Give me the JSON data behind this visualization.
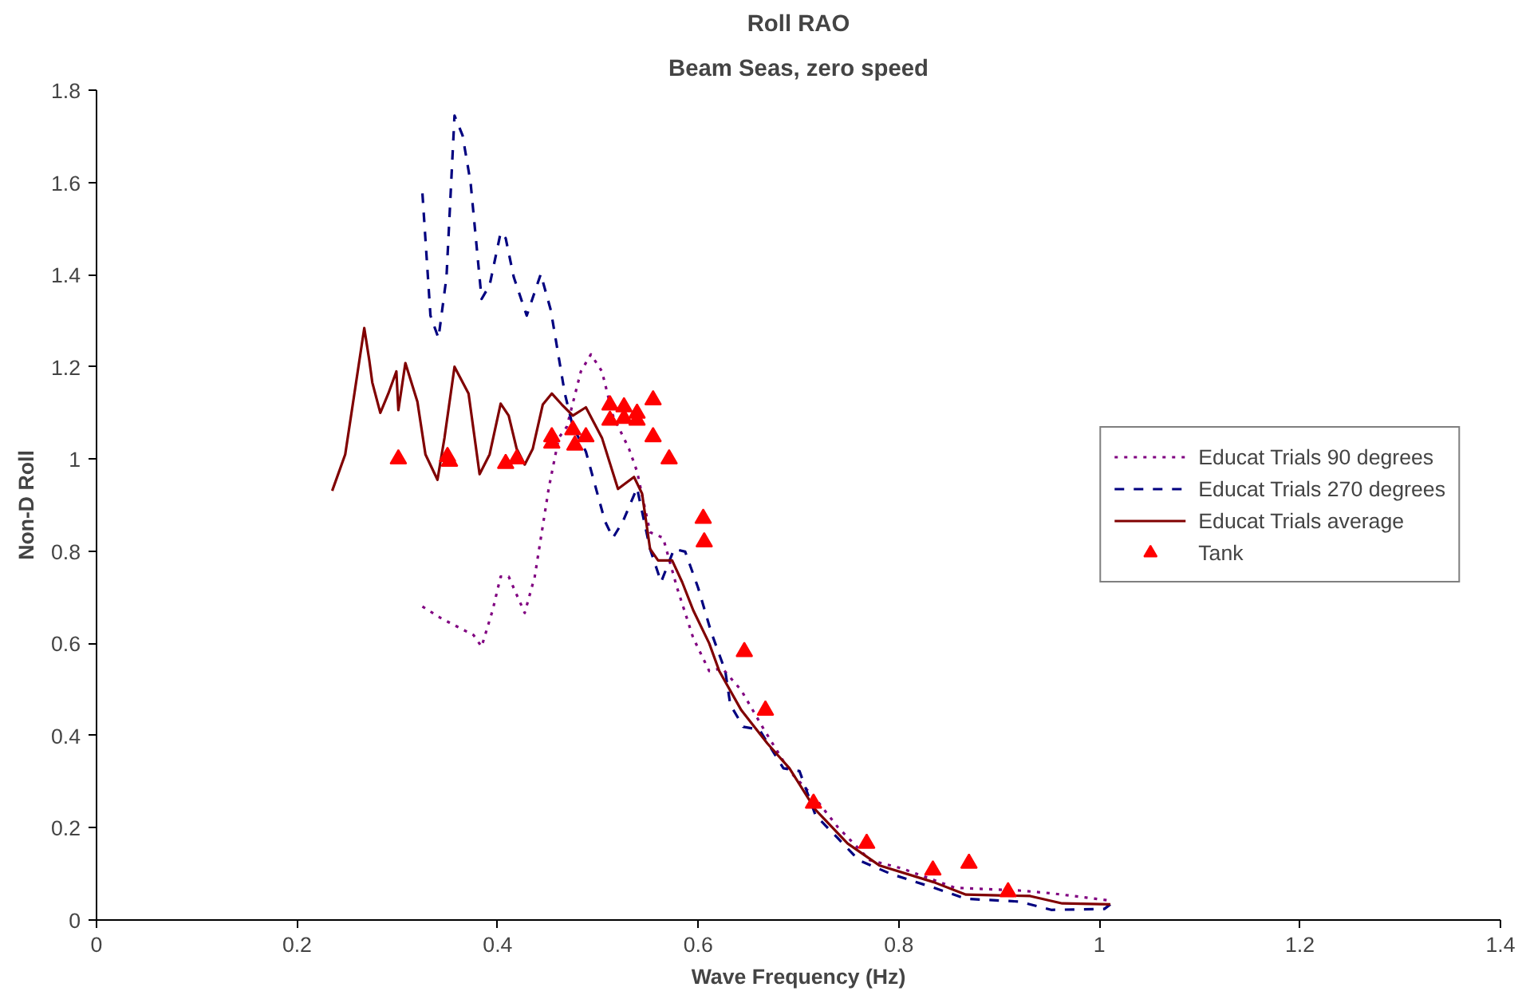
{
  "chart_data": {
    "type": "line",
    "title": "Roll RAO",
    "subtitle": "Beam Seas, zero speed",
    "xlabel": "Wave Frequency (Hz)",
    "ylabel": "Non-D Roll",
    "xlim": [
      0,
      1.4
    ],
    "xticks": [
      0,
      0.2,
      0.4,
      0.6,
      0.8,
      1,
      1.2,
      1.4
    ],
    "ylim": [
      0,
      1.8
    ],
    "yticks": [
      0,
      0.2,
      0.4,
      0.6,
      0.8,
      1,
      1.2,
      1.4,
      1.6,
      1.8
    ],
    "grid": false,
    "legend": "right",
    "series": [
      {
        "name": "Educat Trials 90 degrees",
        "color": "#800080",
        "line_style": "dotted",
        "x": [
          0.325,
          0.344,
          0.36,
          0.376,
          0.384,
          0.395,
          0.403,
          0.411,
          0.427,
          0.437,
          0.451,
          0.461,
          0.469,
          0.483,
          0.493,
          0.504,
          0.515,
          0.531,
          0.539,
          0.552,
          0.565,
          0.579,
          0.595,
          0.611,
          0.624,
          0.643,
          0.664,
          0.691,
          0.717,
          0.739,
          0.771,
          0.803,
          0.856,
          0.92,
          0.952,
          1.011
        ],
        "values": [
          0.68,
          0.654,
          0.636,
          0.618,
          0.593,
          0.672,
          0.745,
          0.745,
          0.666,
          0.745,
          0.937,
          1.046,
          1.07,
          1.19,
          1.227,
          1.19,
          1.094,
          1.022,
          0.973,
          0.841,
          0.829,
          0.72,
          0.612,
          0.54,
          0.546,
          0.498,
          0.419,
          0.323,
          0.263,
          0.202,
          0.13,
          0.112,
          0.07,
          0.064,
          0.058,
          0.042
        ]
      },
      {
        "name": "Educat Trials 270 degrees",
        "color": "#000080",
        "line_style": "dashed",
        "x": [
          0.325,
          0.333,
          0.341,
          0.349,
          0.357,
          0.365,
          0.373,
          0.384,
          0.392,
          0.403,
          0.408,
          0.416,
          0.429,
          0.443,
          0.453,
          0.467,
          0.475,
          0.488,
          0.507,
          0.515,
          0.525,
          0.539,
          0.552,
          0.563,
          0.576,
          0.587,
          0.6,
          0.613,
          0.627,
          0.632,
          0.645,
          0.661,
          0.685,
          0.701,
          0.717,
          0.739,
          0.76,
          0.792,
          0.835,
          0.867,
          0.92,
          0.952,
          1.005,
          1.011
        ],
        "values": [
          1.576,
          1.311,
          1.262,
          1.395,
          1.745,
          1.702,
          1.6,
          1.347,
          1.377,
          1.491,
          1.479,
          1.395,
          1.311,
          1.401,
          1.323,
          1.142,
          1.07,
          1.016,
          0.865,
          0.829,
          0.865,
          0.937,
          0.805,
          0.733,
          0.805,
          0.799,
          0.72,
          0.624,
          0.54,
          0.467,
          0.419,
          0.413,
          0.329,
          0.323,
          0.227,
          0.178,
          0.13,
          0.1,
          0.07,
          0.046,
          0.04,
          0.022,
          0.024,
          0.034
        ]
      },
      {
        "name": "Educat Trials average",
        "color": "#800000",
        "line_style": "solid",
        "x": [
          0.235,
          0.248,
          0.258,
          0.267,
          0.272,
          0.275,
          0.283,
          0.291,
          0.299,
          0.301,
          0.308,
          0.32,
          0.328,
          0.34,
          0.347,
          0.357,
          0.371,
          0.382,
          0.392,
          0.403,
          0.411,
          0.419,
          0.427,
          0.435,
          0.445,
          0.454,
          0.464,
          0.475,
          0.488,
          0.504,
          0.52,
          0.536,
          0.544,
          0.552,
          0.56,
          0.574,
          0.584,
          0.595,
          0.611,
          0.621,
          0.643,
          0.669,
          0.691,
          0.717,
          0.749,
          0.781,
          0.835,
          0.867,
          0.931,
          0.963,
          1.011
        ],
        "values": [
          0.931,
          1.01,
          1.154,
          1.284,
          1.214,
          1.166,
          1.1,
          1.142,
          1.19,
          1.106,
          1.208,
          1.124,
          1.01,
          0.955,
          1.046,
          1.2,
          1.142,
          0.967,
          1.01,
          1.12,
          1.094,
          1.022,
          0.988,
          1.022,
          1.118,
          1.142,
          1.118,
          1.094,
          1.112,
          1.046,
          0.935,
          0.961,
          0.925,
          0.805,
          0.78,
          0.78,
          0.733,
          0.672,
          0.6,
          0.54,
          0.455,
          0.383,
          0.329,
          0.239,
          0.166,
          0.118,
          0.082,
          0.055,
          0.052,
          0.036,
          0.034
        ]
      },
      {
        "name": "Tank",
        "type": "scatter",
        "marker": "triangle",
        "color": "#ff0000",
        "x": [
          0.301,
          0.35,
          0.352,
          0.408,
          0.419,
          0.454,
          0.454,
          0.477,
          0.475,
          0.488,
          0.512,
          0.512,
          0.526,
          0.526,
          0.539,
          0.539,
          0.555,
          0.555,
          0.571,
          0.605,
          0.606,
          0.646,
          0.667,
          0.715,
          0.768,
          0.834,
          0.87,
          0.909
        ],
        "values": [
          1.0,
          1.005,
          0.995,
          0.99,
          1.0,
          1.034,
          1.048,
          1.03,
          1.063,
          1.048,
          1.117,
          1.084,
          1.113,
          1.088,
          1.099,
          1.084,
          1.128,
          1.048,
          1.0,
          0.871,
          0.82,
          0.582,
          0.455,
          0.253,
          0.166,
          0.108,
          0.123,
          0.061
        ]
      }
    ]
  }
}
